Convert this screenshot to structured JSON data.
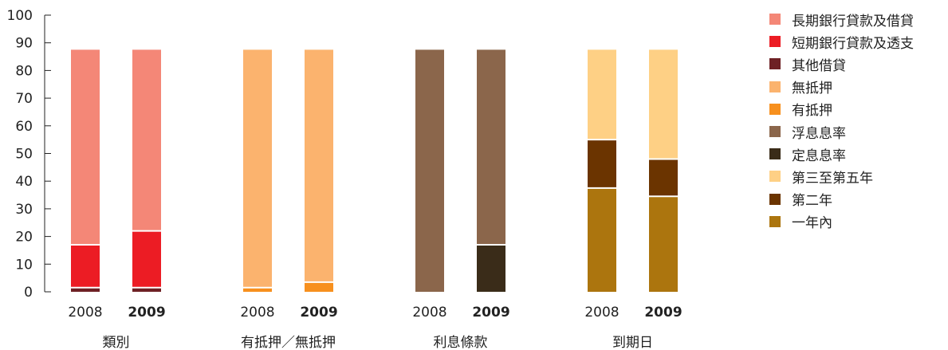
{
  "chart_data": {
    "type": "bar",
    "stacked": true,
    "ylim": [
      0,
      100
    ],
    "yticks": [
      0,
      10,
      20,
      30,
      40,
      50,
      60,
      70,
      80,
      90,
      100
    ],
    "groups": [
      {
        "label": "類別",
        "bars": [
          {
            "year": "2008",
            "bold": false,
            "segments": [
              {
                "legend": 2,
                "value": 1.5
              },
              {
                "legend": 1,
                "value": 15.5
              },
              {
                "legend": 0,
                "value": 70.5
              }
            ]
          },
          {
            "year": "2009",
            "bold": true,
            "segments": [
              {
                "legend": 2,
                "value": 1.5
              },
              {
                "legend": 1,
                "value": 20.5
              },
              {
                "legend": 0,
                "value": 65.5
              }
            ]
          }
        ]
      },
      {
        "label": "有抵押／無抵押",
        "bars": [
          {
            "year": "2008",
            "bold": false,
            "segments": [
              {
                "legend": 4,
                "value": 1.5
              },
              {
                "legend": 3,
                "value": 86
              }
            ]
          },
          {
            "year": "2009",
            "bold": true,
            "segments": [
              {
                "legend": 4,
                "value": 3.5
              },
              {
                "legend": 3,
                "value": 84
              }
            ]
          }
        ]
      },
      {
        "label": "利息條款",
        "bars": [
          {
            "year": "2008",
            "bold": false,
            "segments": [
              {
                "legend": 5,
                "value": 87.5
              }
            ]
          },
          {
            "year": "2009",
            "bold": true,
            "segments": [
              {
                "legend": 6,
                "value": 17
              },
              {
                "legend": 5,
                "value": 70.5
              }
            ]
          }
        ]
      },
      {
        "label": "到期日",
        "bars": [
          {
            "year": "2008",
            "bold": false,
            "segments": [
              {
                "legend": 9,
                "value": 37.5
              },
              {
                "legend": 8,
                "value": 17.5
              },
              {
                "legend": 7,
                "value": 32.5
              }
            ]
          },
          {
            "year": "2009",
            "bold": true,
            "segments": [
              {
                "legend": 9,
                "value": 34.5
              },
              {
                "legend": 8,
                "value": 13.5
              },
              {
                "legend": 7,
                "value": 39.5
              }
            ]
          }
        ]
      }
    ],
    "legend": [
      {
        "label": "長期銀行貸款及借貸",
        "color": "#F48777"
      },
      {
        "label": "短期銀行貸款及透支",
        "color": "#EC1C24"
      },
      {
        "label": "其他借貸",
        "color": "#6E2125"
      },
      {
        "label": "無抵押",
        "color": "#FBB36E"
      },
      {
        "label": "有抵押",
        "color": "#F7901E"
      },
      {
        "label": "浮息息率",
        "color": "#8B664B"
      },
      {
        "label": "定息息率",
        "color": "#3A2C19"
      },
      {
        "label": "第三至第五年",
        "color": "#FED085"
      },
      {
        "label": "第二年",
        "color": "#6B3400"
      },
      {
        "label": "一年內",
        "color": "#AC750E"
      }
    ],
    "legend_position": "right"
  }
}
